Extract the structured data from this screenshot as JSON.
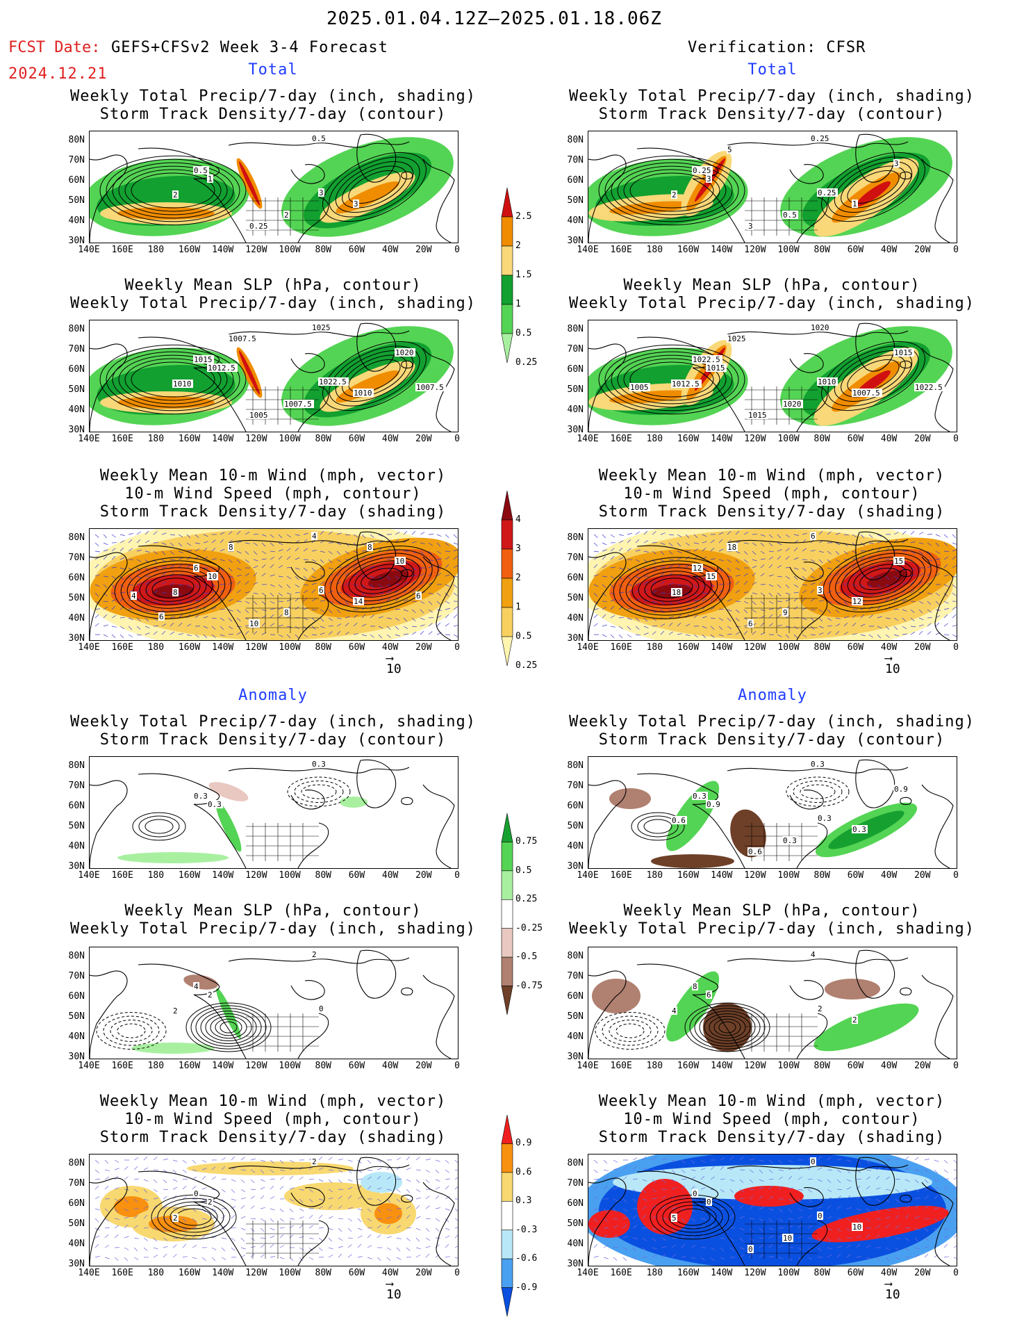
{
  "header": {
    "date_range": "2025.01.04.12Z–2025.01.18.06Z",
    "fcst_label": "FCST Date:",
    "forecast_name": "GEFS+CFSv2 Week 3-4 Forecast",
    "fcst_date": "2024.12.21",
    "verification": "Verification: CFSR"
  },
  "sections": {
    "total": "Total",
    "anomaly": "Anomaly"
  },
  "titles": {
    "precip_storm": [
      "Weekly Total Precip/7-day (inch, shading)",
      "Storm Track Density/7-day (contour)"
    ],
    "slp_precip": [
      "Weekly Mean SLP (hPa, contour)",
      "Weekly Total Precip/7-day (inch, shading)"
    ],
    "wind_storm": [
      "Weekly Mean 10-m Wind (mph, vector)",
      "10-m Wind Speed (mph, contour)",
      "Storm Track Density/7-day (shading)"
    ]
  },
  "axes": {
    "lat_labels": [
      "80N",
      "70N",
      "60N",
      "50N",
      "40N",
      "30N"
    ],
    "lon_labels": [
      "140E",
      "160E",
      "180",
      "160W",
      "140W",
      "120W",
      "100W",
      "80W",
      "60W",
      "40W",
      "20W",
      "0"
    ]
  },
  "vector_ref": "10",
  "colorbars": {
    "total_precip": {
      "labels": [
        "2.5",
        "2",
        "1.5",
        "1",
        "0.5",
        "0.25"
      ],
      "colors": [
        "#d01010",
        "#f08c00",
        "#f8d878",
        "#12a030",
        "#54d454",
        "#a8f0a0"
      ]
    },
    "total_storm": {
      "labels": [
        "4",
        "3",
        "2",
        "1",
        "0.5",
        "0.25"
      ],
      "colors": [
        "#8b0a10",
        "#d01818",
        "#f06010",
        "#f0a010",
        "#f8d060",
        "#fff4b0"
      ]
    },
    "anom_precip": {
      "labels": [
        "0.75",
        "0.5",
        "0.25",
        "-0.25",
        "-0.5",
        "-0.75"
      ],
      "colors": [
        "#16a030",
        "#54d454",
        "#a8f0a0",
        "#ffffff",
        "#e8c8c0",
        "#b08070",
        "#6e4028"
      ]
    },
    "anom_storm": {
      "labels": [
        "0.9",
        "0.6",
        "0.3",
        "-0.3",
        "-0.6",
        "-0.9"
      ],
      "colors": [
        "#f02020",
        "#f89010",
        "#f8d870",
        "#ffffff",
        "#b8e8f8",
        "#4aa0f0",
        "#0a50e0"
      ]
    }
  },
  "contour_labels": {
    "map1": [
      "0.5",
      "0.5",
      "1",
      "2",
      "3",
      "3",
      "2",
      "0.25"
    ],
    "map2": [
      "0.25",
      "0.25",
      "3",
      "2",
      "0.25",
      "1",
      "0.5",
      "3",
      "3",
      "5"
    ],
    "map3": [
      "1025",
      "1015",
      "1012.5",
      "1010",
      "1022.5",
      "1010",
      "1007.5",
      "1005",
      "1020",
      "1007.5",
      "1007.5"
    ],
    "map4": [
      "1020",
      "1022.5",
      "1015",
      "1012.5",
      "1010",
      "1007.5",
      "1020",
      "1015",
      "1015",
      "1025",
      "1022.5",
      "1005"
    ],
    "map5": [
      "4",
      "6",
      "10",
      "8",
      "6",
      "14",
      "8",
      "10",
      "10",
      "8",
      "6",
      "4",
      "6",
      "8"
    ],
    "map6": [
      "6",
      "12",
      "15",
      "18",
      "3",
      "12",
      "9",
      "6",
      "15",
      "18"
    ],
    "map7": [
      "0.3",
      "0.3",
      "0.3"
    ],
    "map8": [
      "0.3",
      "0.3",
      "0.9",
      "0.6",
      "0.3",
      "0.3",
      "0.3",
      "0.6",
      "0.9"
    ],
    "map9": [
      "2",
      "4",
      "2",
      "2",
      "0"
    ],
    "map10": [
      "4",
      "8",
      "6",
      "4",
      "2",
      "2"
    ],
    "map11": [
      "2",
      "0",
      "2",
      "2"
    ],
    "map12": [
      "0",
      "0",
      "0",
      "5",
      "0",
      "10",
      "10",
      "0"
    ]
  }
}
